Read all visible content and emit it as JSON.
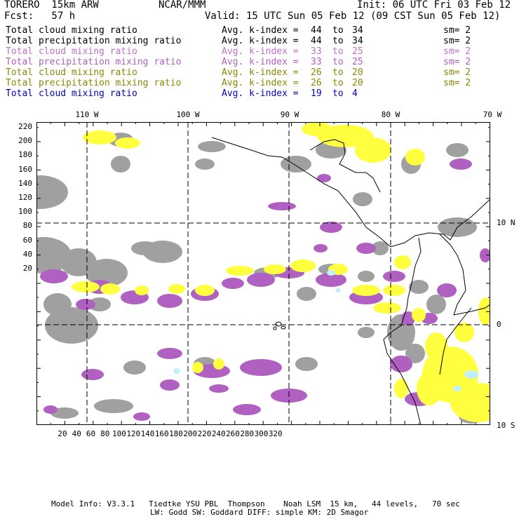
{
  "header": {
    "model": "TORERO  15km ARW",
    "center": "NCAR/MMM",
    "init": "Init: 06 UTC Fri 03 Feb 12",
    "fcst": "Fcst:   57 h",
    "valid": "Valid: 15 UTC Sun 05 Feb 12 (09 CST Sun 05 Feb 12)"
  },
  "legend": [
    {
      "field": "Total cloud mixing ratio",
      "kindex": "Avg. k-index =",
      "from": "44",
      "to": "to",
      "end": "34",
      "sm": "sm= 2",
      "color": "#000000"
    },
    {
      "field": "Total precipitation mixing ratio",
      "kindex": "Avg. k-index =",
      "from": "44",
      "to": "to",
      "end": "34",
      "sm": "sm= 2",
      "color": "#000000"
    },
    {
      "field": "Total cloud mixing ratio",
      "kindex": "Avg. k-index =",
      "from": "33",
      "to": "to",
      "end": "25",
      "sm": "sm= 2",
      "color": "#c070c8"
    },
    {
      "field": "Total precipitation mixing ratio",
      "kindex": "Avg. k-index =",
      "from": "33",
      "to": "to",
      "end": "25",
      "sm": "sm= 2",
      "color": "#b060c0"
    },
    {
      "field": "Total cloud mixing ratio",
      "kindex": "Avg. k-index =",
      "from": "26",
      "to": "to",
      "end": "20",
      "sm": "sm= 2",
      "color": "#888800"
    },
    {
      "field": "Total precipitation mixing ratio",
      "kindex": "Avg. k-index =",
      "from": "26",
      "to": "to",
      "end": "20",
      "sm": "sm= 2",
      "color": "#888800"
    },
    {
      "field": "Total cloud mixing ratio",
      "kindex": "Avg. k-index =",
      "from": "19",
      "to": "to",
      "end": "4",
      "sm": "",
      "color": "#0000cc"
    }
  ],
  "map": {
    "lon_labels": [
      "110 W",
      "100 W",
      "90 W",
      "80 W",
      "70 W"
    ],
    "lat_labels": [
      "10 N",
      "0",
      "10 S"
    ],
    "y_ticks": [
      "220",
      "200",
      "180",
      "160",
      "140",
      "120",
      "100",
      "80",
      "60",
      "40",
      "20"
    ],
    "x_ticks": [
      "20",
      "40",
      "60",
      "80",
      "100",
      "120",
      "140",
      "160",
      "180",
      "200",
      "220",
      "240",
      "260",
      "280",
      "300",
      "320"
    ],
    "colors": {
      "gray": "#a0a0a0",
      "purple": "#b060c0",
      "yellow": "#ffff40",
      "cyan": "#c0f0ff",
      "grid": "#000000"
    }
  },
  "footer": {
    "line1": "Model Info: V3.3.1   Tiedtke YSU PBL  Thompson    Noah LSM  15 km,   44 levels,   70 sec",
    "line2": "LW: Godd SW: Goddard DIFF: simple KM: 2D Smagor"
  }
}
